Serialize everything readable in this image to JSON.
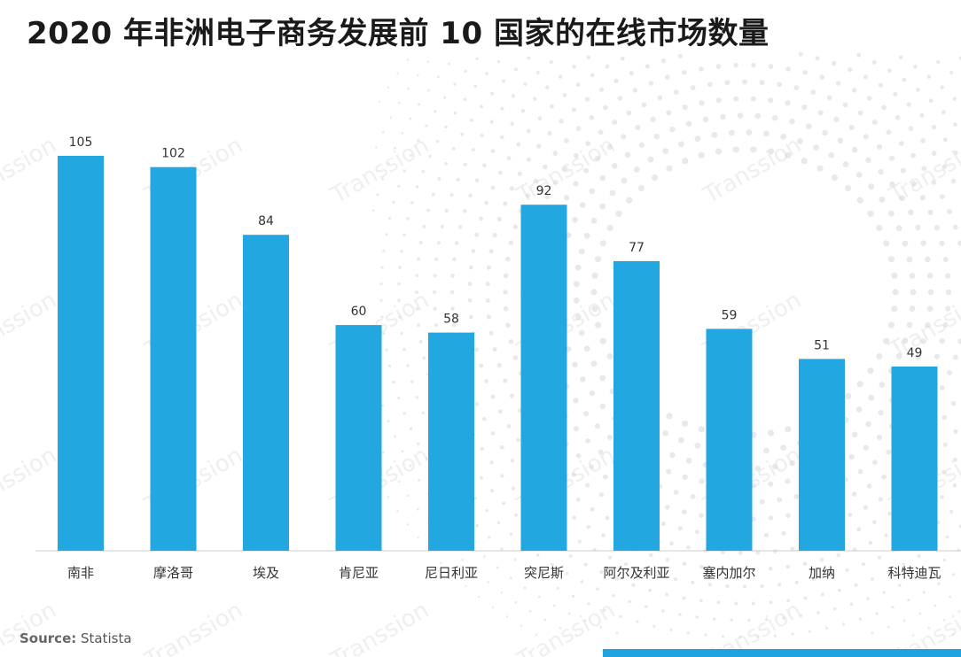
{
  "chart_data": {
    "type": "bar",
    "title": "2020 年非洲电子商务发展前 10 国家的在线市场数量",
    "categories": [
      "南非",
      "摩洛哥",
      "埃及",
      "肯尼亚",
      "尼日利亚",
      "突尼斯",
      "阿尔及利亚",
      "塞内加尔",
      "加纳",
      "科特迪瓦"
    ],
    "values": [
      105,
      102,
      84,
      60,
      58,
      92,
      77,
      59,
      51,
      49
    ],
    "xlabel": "",
    "ylabel": "",
    "ylim": [
      0,
      105
    ],
    "grid": false,
    "legend": "none",
    "data_labels": true,
    "bar_color": "#22a7e0"
  },
  "source": {
    "label": "Source:",
    "text": "Statista"
  },
  "watermark": "Transsion",
  "colors": {
    "accent": "#1fa3df",
    "axis": "#cccccc",
    "dots": "#e9e9e9"
  }
}
